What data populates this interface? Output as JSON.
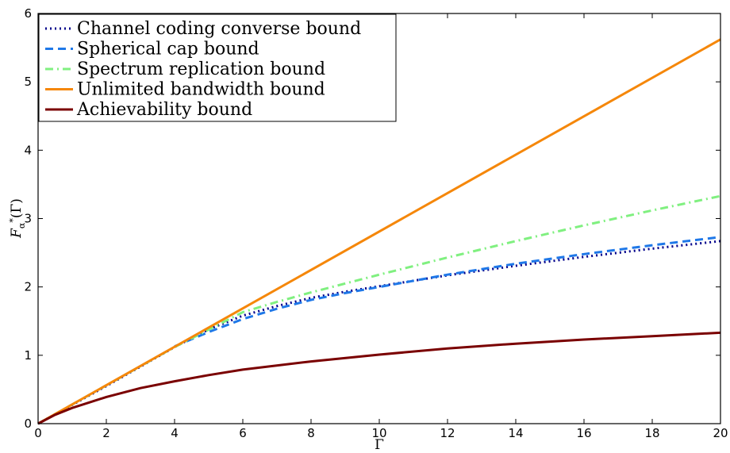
{
  "chart_data": {
    "type": "line",
    "xlabel": "Γ",
    "ylabel": "F*α(Γ)",
    "xlim": [
      0,
      20
    ],
    "ylim": [
      0,
      6
    ],
    "xticks": [
      "0",
      "2",
      "4",
      "6",
      "8",
      "10",
      "12",
      "14",
      "16",
      "18",
      "20"
    ],
    "yticks": [
      "0",
      "1",
      "2",
      "3",
      "4",
      "5",
      "6"
    ],
    "grid": false,
    "legend_position": "top-left",
    "series": [
      {
        "name": "Channel coding converse bound",
        "color": "#00008b",
        "style": "dotted",
        "x": [
          0,
          2,
          4,
          5,
          6,
          7,
          8,
          9,
          10,
          12,
          14,
          16,
          18,
          20
        ],
        "y": [
          0,
          0.55,
          1.12,
          1.38,
          1.58,
          1.72,
          1.84,
          1.93,
          2.01,
          2.17,
          2.31,
          2.44,
          2.56,
          2.67
        ]
      },
      {
        "name": "Spherical cap bound",
        "color": "#1f78e8",
        "style": "dashed",
        "x": [
          4,
          5,
          6,
          7,
          8,
          9,
          10,
          12,
          14,
          16,
          18,
          20
        ],
        "y": [
          1.13,
          1.34,
          1.53,
          1.68,
          1.81,
          1.91,
          2.0,
          2.18,
          2.34,
          2.48,
          2.61,
          2.73
        ]
      },
      {
        "name": "Spectrum replication bound",
        "color": "#80f080",
        "style": "dashdot",
        "x": [
          0,
          2,
          4,
          6,
          7,
          8,
          10,
          12,
          14,
          16,
          18,
          20
        ],
        "y": [
          0,
          0.56,
          1.12,
          1.63,
          1.78,
          1.92,
          2.18,
          2.43,
          2.67,
          2.9,
          3.12,
          3.33
        ]
      },
      {
        "name": "Unlimited bandwidth bound",
        "color": "#f5870a",
        "style": "solid",
        "x": [
          0,
          20
        ],
        "y": [
          0,
          5.62
        ]
      },
      {
        "name": "Achievability bound",
        "color": "#7a0000",
        "style": "solid",
        "x": [
          0,
          0.5,
          1,
          2,
          3,
          4,
          5,
          6,
          8,
          10,
          12,
          14,
          16,
          18,
          20
        ],
        "y": [
          0,
          0.13,
          0.23,
          0.39,
          0.52,
          0.62,
          0.71,
          0.79,
          0.91,
          1.01,
          1.1,
          1.17,
          1.23,
          1.28,
          1.33
        ]
      }
    ]
  }
}
